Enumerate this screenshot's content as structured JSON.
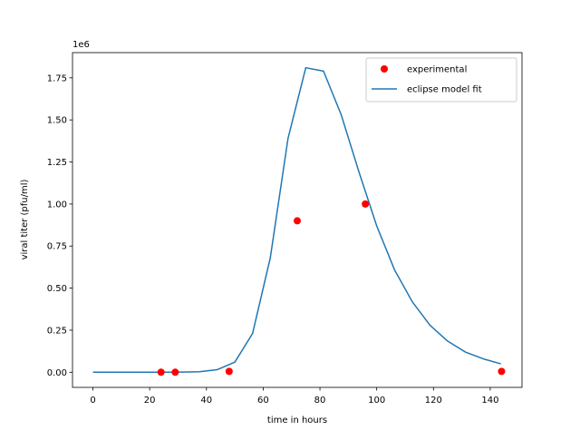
{
  "chart_data": {
    "type": "line",
    "xlabel": "time in hours",
    "ylabel": "viral titer (pfu/ml)",
    "y_offset_text": "1e6",
    "xlim": [
      -7.2,
      151.2
    ],
    "ylim": [
      -0.09,
      1.9
    ],
    "xticks": [
      0,
      20,
      40,
      60,
      80,
      100,
      120,
      140
    ],
    "yticks": [
      0.0,
      0.25,
      0.5,
      0.75,
      1.0,
      1.25,
      1.5,
      1.75
    ],
    "ytick_labels": [
      "0.00",
      "0.25",
      "0.50",
      "0.75",
      "1.00",
      "1.25",
      "1.50",
      "1.75"
    ],
    "grid": false,
    "legend_position": "top-right",
    "series": [
      {
        "name": "experimental",
        "kind": "scatter",
        "color": "#ff0000",
        "x": [
          24,
          29,
          48,
          72,
          96,
          144
        ],
        "y": [
          0.0,
          0.0,
          0.005,
          0.9,
          1.0,
          0.005
        ]
      },
      {
        "name": "eclipse model fit",
        "kind": "line",
        "color": "#1f77b4",
        "x": [
          0,
          6.25,
          12.5,
          18.75,
          25,
          31.25,
          37.5,
          43.75,
          50,
          56.25,
          62.5,
          68.75,
          75,
          81.25,
          87.5,
          93.75,
          100,
          106.25,
          112.5,
          118.75,
          125,
          131.25,
          137.5,
          143.75
        ],
        "y": [
          0.0,
          0.0,
          0.0,
          0.0,
          0.0,
          0.001,
          0.003,
          0.015,
          0.06,
          0.23,
          0.68,
          1.39,
          1.81,
          1.79,
          1.53,
          1.19,
          0.87,
          0.61,
          0.42,
          0.28,
          0.185,
          0.12,
          0.08,
          0.05
        ]
      }
    ]
  }
}
